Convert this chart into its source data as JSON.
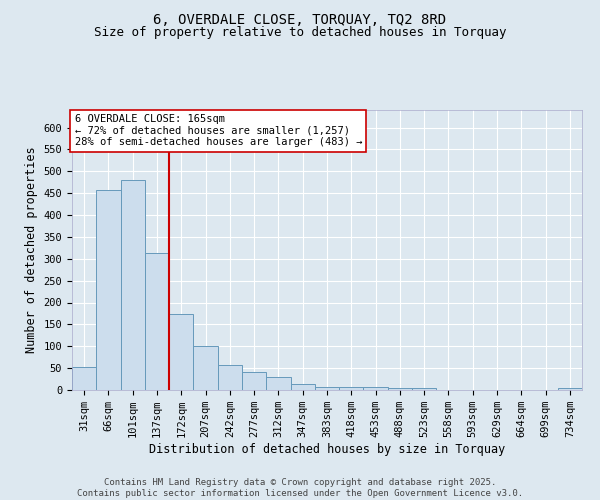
{
  "title": "6, OVERDALE CLOSE, TORQUAY, TQ2 8RD",
  "subtitle": "Size of property relative to detached houses in Torquay",
  "xlabel": "Distribution of detached houses by size in Torquay",
  "ylabel": "Number of detached properties",
  "categories": [
    "31sqm",
    "66sqm",
    "101sqm",
    "137sqm",
    "172sqm",
    "207sqm",
    "242sqm",
    "277sqm",
    "312sqm",
    "347sqm",
    "383sqm",
    "418sqm",
    "453sqm",
    "488sqm",
    "523sqm",
    "558sqm",
    "593sqm",
    "629sqm",
    "664sqm",
    "699sqm",
    "734sqm"
  ],
  "values": [
    53,
    457,
    480,
    313,
    173,
    100,
    58,
    42,
    30,
    13,
    8,
    6,
    6,
    5,
    5,
    0,
    0,
    0,
    0,
    0,
    5
  ],
  "bar_color": "#ccdded",
  "bar_edge_color": "#6699bb",
  "background_color": "#dde8f0",
  "ylim": [
    0,
    640
  ],
  "yticks": [
    0,
    50,
    100,
    150,
    200,
    250,
    300,
    350,
    400,
    450,
    500,
    550,
    600
  ],
  "vline_color": "#cc0000",
  "vline_x_index": 3.5,
  "annotation_text": "6 OVERDALE CLOSE: 165sqm\n← 72% of detached houses are smaller (1,257)\n28% of semi-detached houses are larger (483) →",
  "annotation_box_color": "#ffffff",
  "annotation_box_edge": "#cc0000",
  "footer_text": "Contains HM Land Registry data © Crown copyright and database right 2025.\nContains public sector information licensed under the Open Government Licence v3.0.",
  "title_fontsize": 10,
  "subtitle_fontsize": 9,
  "axis_label_fontsize": 8.5,
  "tick_fontsize": 7.5,
  "annotation_fontsize": 7.5,
  "footer_fontsize": 6.5
}
